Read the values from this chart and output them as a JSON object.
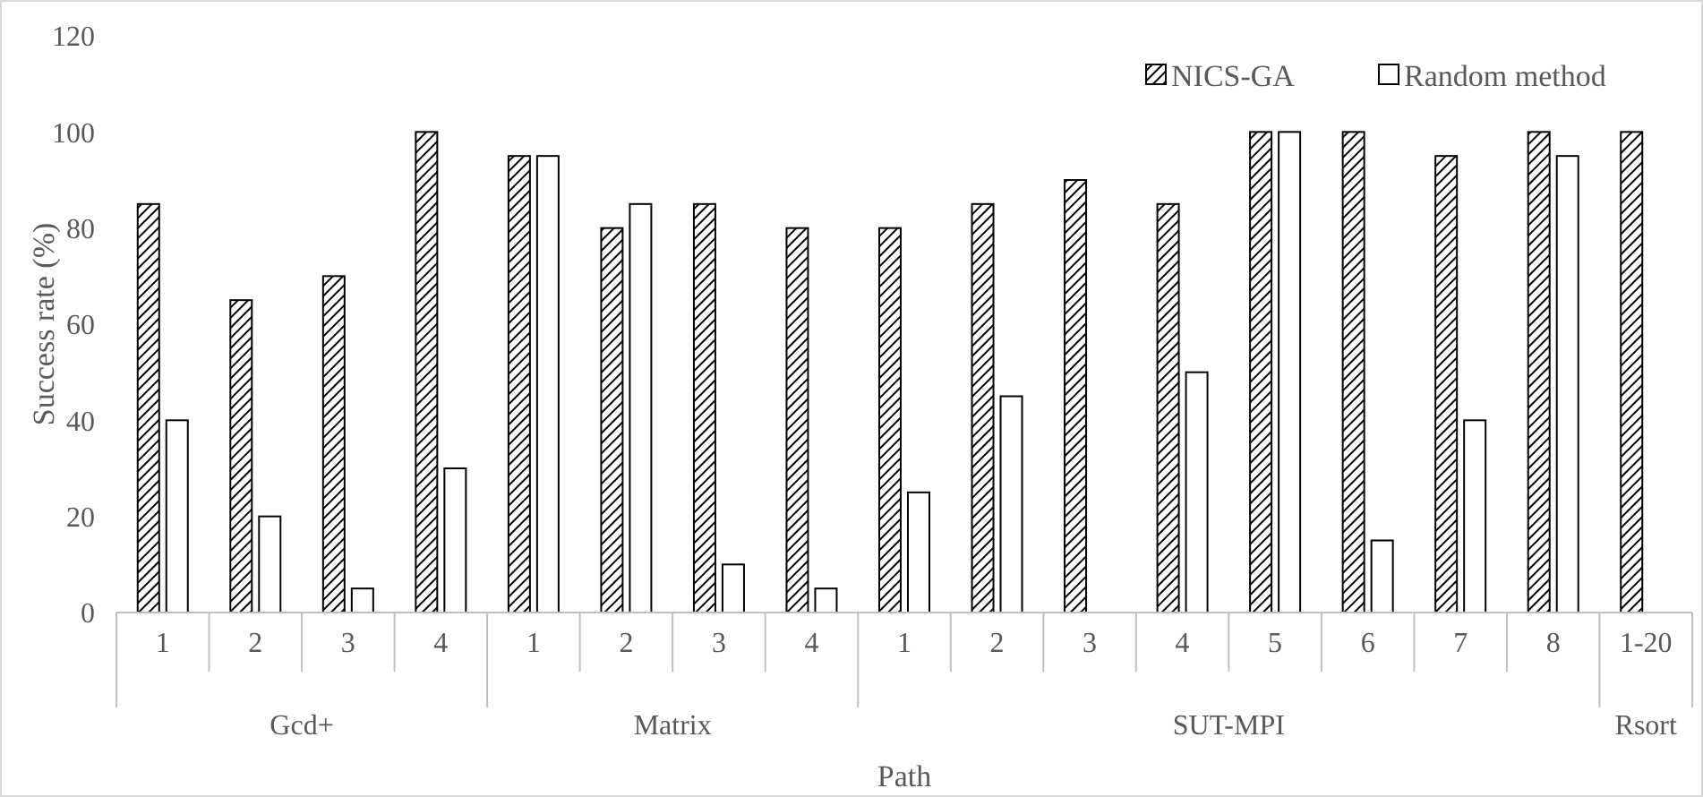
{
  "chart_data": {
    "type": "bar",
    "xlabel": "Path",
    "ylabel": "Success rate (%)",
    "categories": [
      "1",
      "2",
      "3",
      "4",
      "1",
      "2",
      "3",
      "4",
      "1",
      "2",
      "3",
      "4",
      "5",
      "6",
      "7",
      "8",
      "1-20"
    ],
    "series": [
      {
        "name": "NICS-GA",
        "color": "#000000",
        "values": [
          85,
          65,
          70,
          100,
          95,
          80,
          85,
          80,
          80,
          85,
          90,
          85,
          100,
          100,
          95,
          100,
          100
        ]
      },
      {
        "name": "Random method",
        "color": "#ffffff",
        "values": [
          40,
          20,
          5,
          30,
          95,
          85,
          10,
          5,
          25,
          45,
          0,
          50,
          100,
          15,
          40,
          95,
          0
        ]
      }
    ],
    "annotations": [
      "Gcd+",
      "Matrix",
      "SUT-MPI",
      "Rsort"
    ],
    "ylim": [
      0,
      120
    ],
    "yticks": [
      0,
      20,
      40,
      60,
      80,
      100,
      120
    ],
    "grid": false,
    "legend": "top right"
  }
}
